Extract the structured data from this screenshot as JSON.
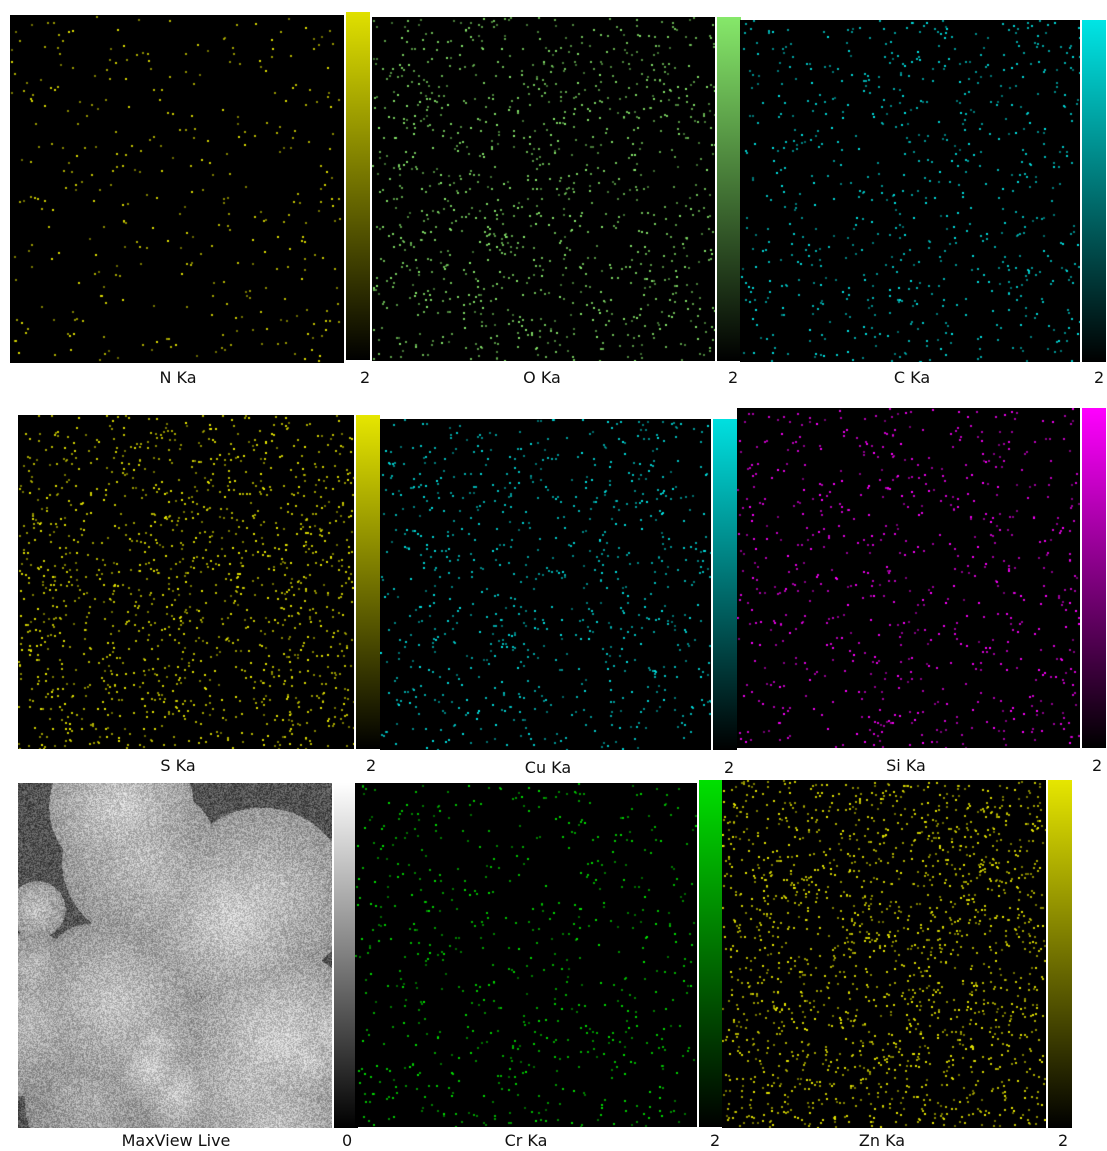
{
  "panels": [
    {
      "label": "N  Ka",
      "max": "2",
      "color": "#e0e000",
      "density": 0.25
    },
    {
      "label": "O  Ka",
      "max": "2",
      "color": "#86e86a",
      "density": 0.75
    },
    {
      "label": "C  Ka",
      "max": "2",
      "color": "#00e5e5",
      "density": 0.5
    },
    {
      "label": "S  Ka",
      "max": "2",
      "color": "#e6e600",
      "density": 1.0
    },
    {
      "label": "Cu Ka",
      "max": "2",
      "color": "#00e0e0",
      "density": 0.6
    },
    {
      "label": "Si Ka",
      "max": "2",
      "color": "#ff00ff",
      "density": 0.5
    },
    {
      "label": "MaxView Live",
      "max": "0",
      "color": "#ffffff",
      "density": 0
    },
    {
      "label": "Cr Ka",
      "max": "2",
      "color": "#00e000",
      "density": 0.45
    },
    {
      "label": "Zn Ka",
      "max": "2",
      "color": "#e6e600",
      "density": 1.3
    }
  ]
}
